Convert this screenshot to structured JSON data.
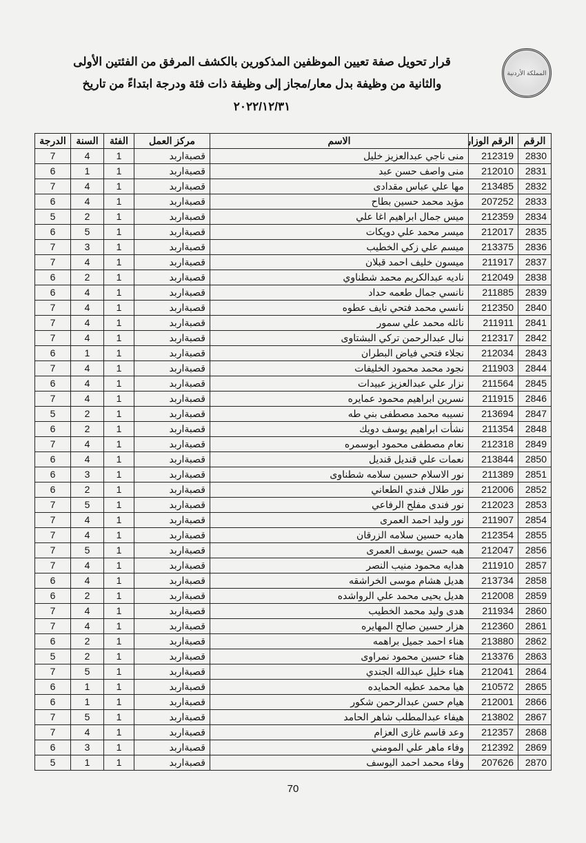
{
  "header": {
    "title_line1": "قرار تحويل صفة تعيين الموظفين المذكورين بالكشف المرفق من الفئتين الأولى",
    "title_line2": "والثانية من وظيفة بدل معار/مجاز إلى وظيفة ذات فئة ودرجة  ابتداءً من تاريخ",
    "title_line3": "٢٠٢٢/١٢/٣١",
    "seal_text": "المملكة الأردنية"
  },
  "columns": {
    "seq": "الرقم",
    "ministerial_no": "الرقم الوزاري",
    "name": "الاسم",
    "work_center": "مركز العمل",
    "category": "الفئة",
    "year": "السنة",
    "grade": "الدرجة"
  },
  "rows": [
    {
      "seq": "2830",
      "mno": "212319",
      "name": "منى ناجي عبدالعزيز خليل",
      "ctr": "قصبةاربد",
      "cat": "1",
      "year": "4",
      "grade": "7"
    },
    {
      "seq": "2831",
      "mno": "212010",
      "name": "منى واصف حسن عبد",
      "ctr": "قصبةاربد",
      "cat": "1",
      "year": "1",
      "grade": "6"
    },
    {
      "seq": "2832",
      "mno": "213485",
      "name": "مها علي عباس مقدادى",
      "ctr": "قصبةاربد",
      "cat": "1",
      "year": "4",
      "grade": "7"
    },
    {
      "seq": "2833",
      "mno": "207252",
      "name": "مؤيد محمد حسين بطاح",
      "ctr": "قصبةاربد",
      "cat": "1",
      "year": "4",
      "grade": "6"
    },
    {
      "seq": "2834",
      "mno": "212359",
      "name": "ميس جمال ابراهيم اغا علي",
      "ctr": "قصبةاربد",
      "cat": "1",
      "year": "2",
      "grade": "5"
    },
    {
      "seq": "2835",
      "mno": "212017",
      "name": "ميسر محمد علي دويكات",
      "ctr": "قصبةاربد",
      "cat": "1",
      "year": "5",
      "grade": "6"
    },
    {
      "seq": "2836",
      "mno": "213375",
      "name": "ميسم علي زكي الخطيب",
      "ctr": "قصبةاربد",
      "cat": "1",
      "year": "3",
      "grade": "7"
    },
    {
      "seq": "2837",
      "mno": "211917",
      "name": "ميسون خليف احمد قبلان",
      "ctr": "قصبةاربد",
      "cat": "1",
      "year": "4",
      "grade": "7"
    },
    {
      "seq": "2838",
      "mno": "212049",
      "name": "ناديه عبدالكريم محمد شطناوي",
      "ctr": "قصبةاربد",
      "cat": "1",
      "year": "2",
      "grade": "6"
    },
    {
      "seq": "2839",
      "mno": "211885",
      "name": "نانسي جمال طعمه حداد",
      "ctr": "قصبةاربد",
      "cat": "1",
      "year": "4",
      "grade": "6"
    },
    {
      "seq": "2840",
      "mno": "212350",
      "name": "نانسي محمد فتحي نايف عطوه",
      "ctr": "قصبةاربد",
      "cat": "1",
      "year": "4",
      "grade": "7"
    },
    {
      "seq": "2841",
      "mno": "211911",
      "name": "نائله محمد علي سمور",
      "ctr": "قصبةاربد",
      "cat": "1",
      "year": "4",
      "grade": "7"
    },
    {
      "seq": "2842",
      "mno": "212317",
      "name": "نبال عبدالرحمن تركي البشتاوى",
      "ctr": "قصبةاربد",
      "cat": "1",
      "year": "4",
      "grade": "7"
    },
    {
      "seq": "2843",
      "mno": "212034",
      "name": "نجلاء فتحي فياض البطران",
      "ctr": "قصبةاربد",
      "cat": "1",
      "year": "1",
      "grade": "6"
    },
    {
      "seq": "2844",
      "mno": "211903",
      "name": "نجود محمد محمود الخليفات",
      "ctr": "قصبةاربد",
      "cat": "1",
      "year": "4",
      "grade": "7"
    },
    {
      "seq": "2845",
      "mno": "211564",
      "name": "نزار علي عبدالعزيز عبيدات",
      "ctr": "قصبةاربد",
      "cat": "1",
      "year": "4",
      "grade": "6"
    },
    {
      "seq": "2846",
      "mno": "211915",
      "name": "نسرين ابراهيم محمود عمايره",
      "ctr": "قصبةاربد",
      "cat": "1",
      "year": "4",
      "grade": "7"
    },
    {
      "seq": "2847",
      "mno": "213694",
      "name": "نسيبه محمد مصطفى بني طه",
      "ctr": "قصبةاربد",
      "cat": "1",
      "year": "2",
      "grade": "5"
    },
    {
      "seq": "2848",
      "mno": "211354",
      "name": "نشأت ابراهيم يوسف دويك",
      "ctr": "قصبةاربد",
      "cat": "1",
      "year": "2",
      "grade": "6"
    },
    {
      "seq": "2849",
      "mno": "212318",
      "name": "نعام مصطفى محمود ابوسمره",
      "ctr": "قصبةاربد",
      "cat": "1",
      "year": "4",
      "grade": "7"
    },
    {
      "seq": "2850",
      "mno": "213844",
      "name": "نعمات علي قنديل قنديل",
      "ctr": "قصبةاربد",
      "cat": "1",
      "year": "4",
      "grade": "6"
    },
    {
      "seq": "2851",
      "mno": "211389",
      "name": "نور الاسلام حسين سلامه شطناوى",
      "ctr": "قصبةاربد",
      "cat": "1",
      "year": "3",
      "grade": "6"
    },
    {
      "seq": "2852",
      "mno": "212006",
      "name": "نور طلال فندي الطعاني",
      "ctr": "قصبةاربد",
      "cat": "1",
      "year": "2",
      "grade": "6"
    },
    {
      "seq": "2853",
      "mno": "212023",
      "name": "نور فندى مفلح الرفاعي",
      "ctr": "قصبةاربد",
      "cat": "1",
      "year": "5",
      "grade": "7"
    },
    {
      "seq": "2854",
      "mno": "211907",
      "name": "نور وليد احمد العمرى",
      "ctr": "قصبةاربد",
      "cat": "1",
      "year": "4",
      "grade": "7"
    },
    {
      "seq": "2855",
      "mno": "212354",
      "name": "هاديه حسين سلامه الزرقان",
      "ctr": "قصبةاربد",
      "cat": "1",
      "year": "4",
      "grade": "7"
    },
    {
      "seq": "2856",
      "mno": "212047",
      "name": "هبه حسن يوسف العمرى",
      "ctr": "قصبةاربد",
      "cat": "1",
      "year": "5",
      "grade": "7"
    },
    {
      "seq": "2857",
      "mno": "211910",
      "name": "هدايه محمود منيب النصر",
      "ctr": "قصبةاربد",
      "cat": "1",
      "year": "4",
      "grade": "7"
    },
    {
      "seq": "2858",
      "mno": "213734",
      "name": "هديل هشام موسى الخراشقه",
      "ctr": "قصبةاربد",
      "cat": "1",
      "year": "4",
      "grade": "6"
    },
    {
      "seq": "2859",
      "mno": "212008",
      "name": "هديل يحيى محمد علي الرواشده",
      "ctr": "قصبةاربد",
      "cat": "1",
      "year": "2",
      "grade": "6"
    },
    {
      "seq": "2860",
      "mno": "211934",
      "name": "هدى وليد محمد الخطيب",
      "ctr": "قصبةاربد",
      "cat": "1",
      "year": "4",
      "grade": "7"
    },
    {
      "seq": "2861",
      "mno": "212360",
      "name": "هزار حسين صالح المهايره",
      "ctr": "قصبةاربد",
      "cat": "1",
      "year": "4",
      "grade": "7"
    },
    {
      "seq": "2862",
      "mno": "213880",
      "name": "هناء احمد جميل براهمه",
      "ctr": "قصبةاربد",
      "cat": "1",
      "year": "2",
      "grade": "6"
    },
    {
      "seq": "2863",
      "mno": "213376",
      "name": "هناء حسين محمود نمراوى",
      "ctr": "قصبةاربد",
      "cat": "1",
      "year": "2",
      "grade": "5"
    },
    {
      "seq": "2864",
      "mno": "212041",
      "name": "هناء خليل عبدالله الجندي",
      "ctr": "قصبةاربد",
      "cat": "1",
      "year": "5",
      "grade": "7"
    },
    {
      "seq": "2865",
      "mno": "210572",
      "name": "هيا محمد عطيه الحمايده",
      "ctr": "قصبةاربد",
      "cat": "1",
      "year": "1",
      "grade": "6"
    },
    {
      "seq": "2866",
      "mno": "212001",
      "name": "هيام حسن عبدالرحمن شكور",
      "ctr": "قصبةاربد",
      "cat": "1",
      "year": "1",
      "grade": "6"
    },
    {
      "seq": "2867",
      "mno": "213802",
      "name": "هيفاء عبدالمطلب شاهر الحامد",
      "ctr": "قصبةاربد",
      "cat": "1",
      "year": "5",
      "grade": "7"
    },
    {
      "seq": "2868",
      "mno": "212357",
      "name": "وعد قاسم غازى العزام",
      "ctr": "قصبةاربد",
      "cat": "1",
      "year": "4",
      "grade": "7"
    },
    {
      "seq": "2869",
      "mno": "212392",
      "name": "وفاء ماهر علي المومني",
      "ctr": "قصبةاربد",
      "cat": "1",
      "year": "3",
      "grade": "6"
    },
    {
      "seq": "2870",
      "mno": "207626",
      "name": "وفاء محمد احمد اليوسف",
      "ctr": "قصبةاربد",
      "cat": "1",
      "year": "1",
      "grade": "5"
    }
  ],
  "page_number": "70"
}
